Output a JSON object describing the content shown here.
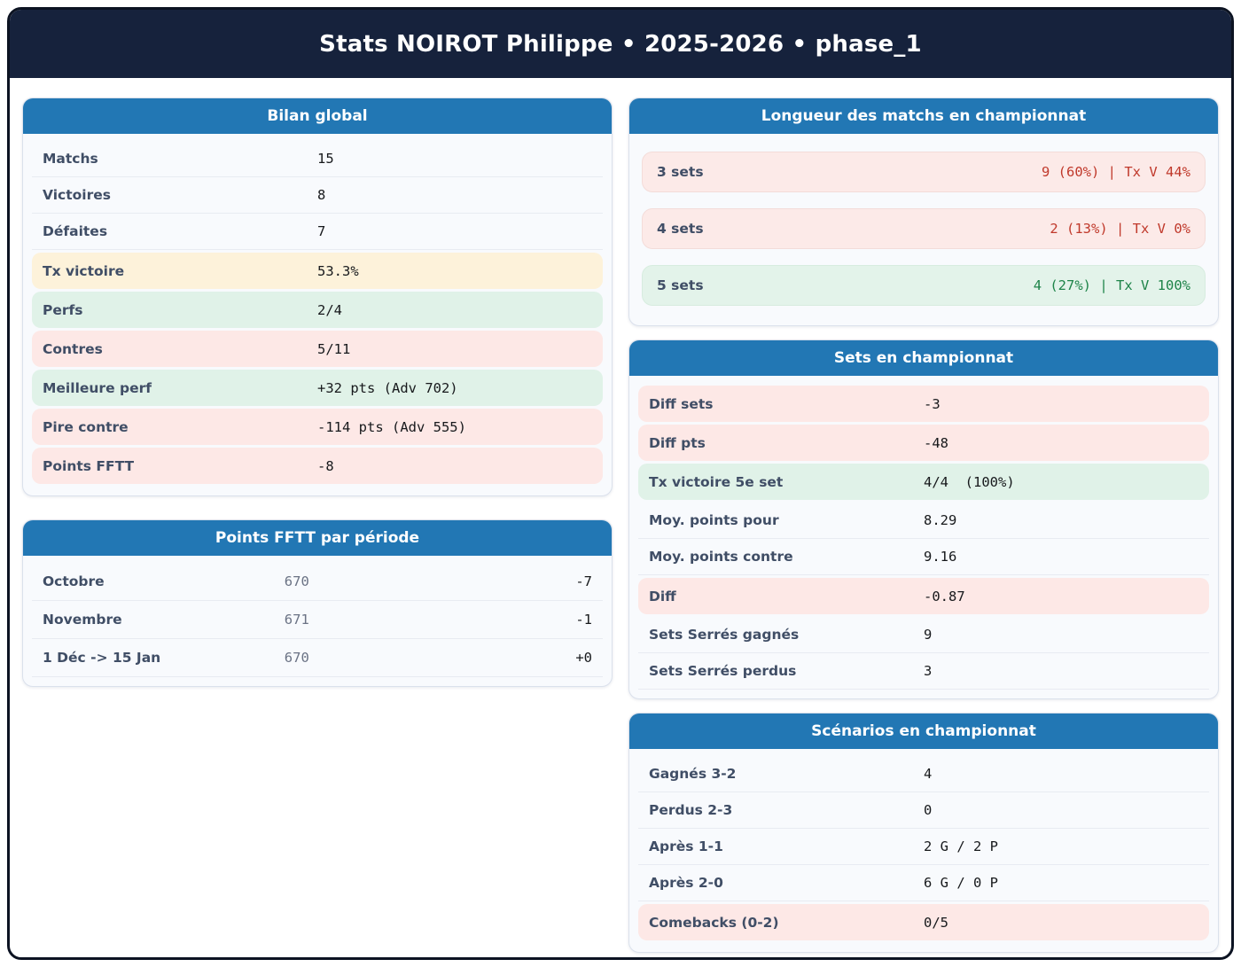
{
  "page": {
    "title": "Stats NOIROT Philippe • 2025-2026 • phase_1"
  },
  "colors": {
    "banner_bg": "#16223c",
    "card_header_bg": "#2277b4",
    "tone_warn_bg": "#fdf2da",
    "tone_good_bg": "#e0f2e8",
    "tone_bad_bg": "#fde8e6",
    "good_text": "#1e8449",
    "bad_text": "#c0392b"
  },
  "cards": {
    "bilan": {
      "title": "Bilan global",
      "rows": [
        {
          "label": "Matchs",
          "value": "15",
          "tone": "plain"
        },
        {
          "label": "Victoires",
          "value": "8",
          "tone": "plain"
        },
        {
          "label": "Défaites",
          "value": "7",
          "tone": "plain"
        },
        {
          "label": "Tx victoire",
          "value": "53.3%",
          "tone": "warn"
        },
        {
          "label": "Perfs",
          "value": "2/4",
          "tone": "good"
        },
        {
          "label": "Contres",
          "value": "5/11",
          "tone": "bad"
        },
        {
          "label": "Meilleure perf",
          "value": "+32 pts (Adv 702)",
          "tone": "good"
        },
        {
          "label": "Pire contre",
          "value": "-114 pts (Adv 555)",
          "tone": "bad"
        },
        {
          "label": "Points FFTT",
          "value": "-8",
          "tone": "bad"
        }
      ]
    },
    "points_periode": {
      "title": "Points FFTT par période",
      "rows": [
        {
          "label": "Octobre",
          "value": "670",
          "delta": "-7",
          "tone": "plain"
        },
        {
          "label": "Novembre",
          "value": "671",
          "delta": "-1",
          "tone": "plain"
        },
        {
          "label": "1 Déc -> 15 Jan",
          "value": "670",
          "delta": "+0",
          "tone": "plain"
        }
      ]
    },
    "longueur": {
      "title": "Longueur des matchs en championnat",
      "rows": [
        {
          "label": "3 sets",
          "value": "9 (60%) | Tx V 44%",
          "tone": "bad"
        },
        {
          "label": "4 sets",
          "value": "2 (13%) | Tx V 0%",
          "tone": "bad"
        },
        {
          "label": "5 sets",
          "value": "4 (27%) | Tx V 100%",
          "tone": "good"
        }
      ]
    },
    "sets": {
      "title": "Sets en championnat",
      "rows": [
        {
          "label": "Diff sets",
          "value": "-3",
          "tone": "bad"
        },
        {
          "label": "Diff pts",
          "value": "-48",
          "tone": "bad"
        },
        {
          "label": "Tx victoire 5e set",
          "value": "4/4  (100%)",
          "tone": "good"
        },
        {
          "label": "Moy. points pour",
          "value": "8.29",
          "tone": "plain"
        },
        {
          "label": "Moy. points contre",
          "value": "9.16",
          "tone": "plain"
        },
        {
          "label": "Diff",
          "value": "-0.87",
          "tone": "bad"
        },
        {
          "label": "Sets Serrés gagnés",
          "value": "9",
          "tone": "plain"
        },
        {
          "label": "Sets Serrés perdus",
          "value": "3",
          "tone": "plain"
        }
      ]
    },
    "scenarios": {
      "title": "Scénarios en championnat",
      "rows": [
        {
          "label": "Gagnés 3-2",
          "value": "4",
          "tone": "plain"
        },
        {
          "label": "Perdus 2-3",
          "value": "0",
          "tone": "plain"
        },
        {
          "label": "Après 1-1",
          "value": "2 G / 2 P",
          "tone": "plain"
        },
        {
          "label": "Après 2-0",
          "value": "6 G / 0 P",
          "tone": "plain"
        },
        {
          "label": "Comebacks (0-2)",
          "value": "0/5",
          "tone": "bad"
        }
      ]
    }
  }
}
